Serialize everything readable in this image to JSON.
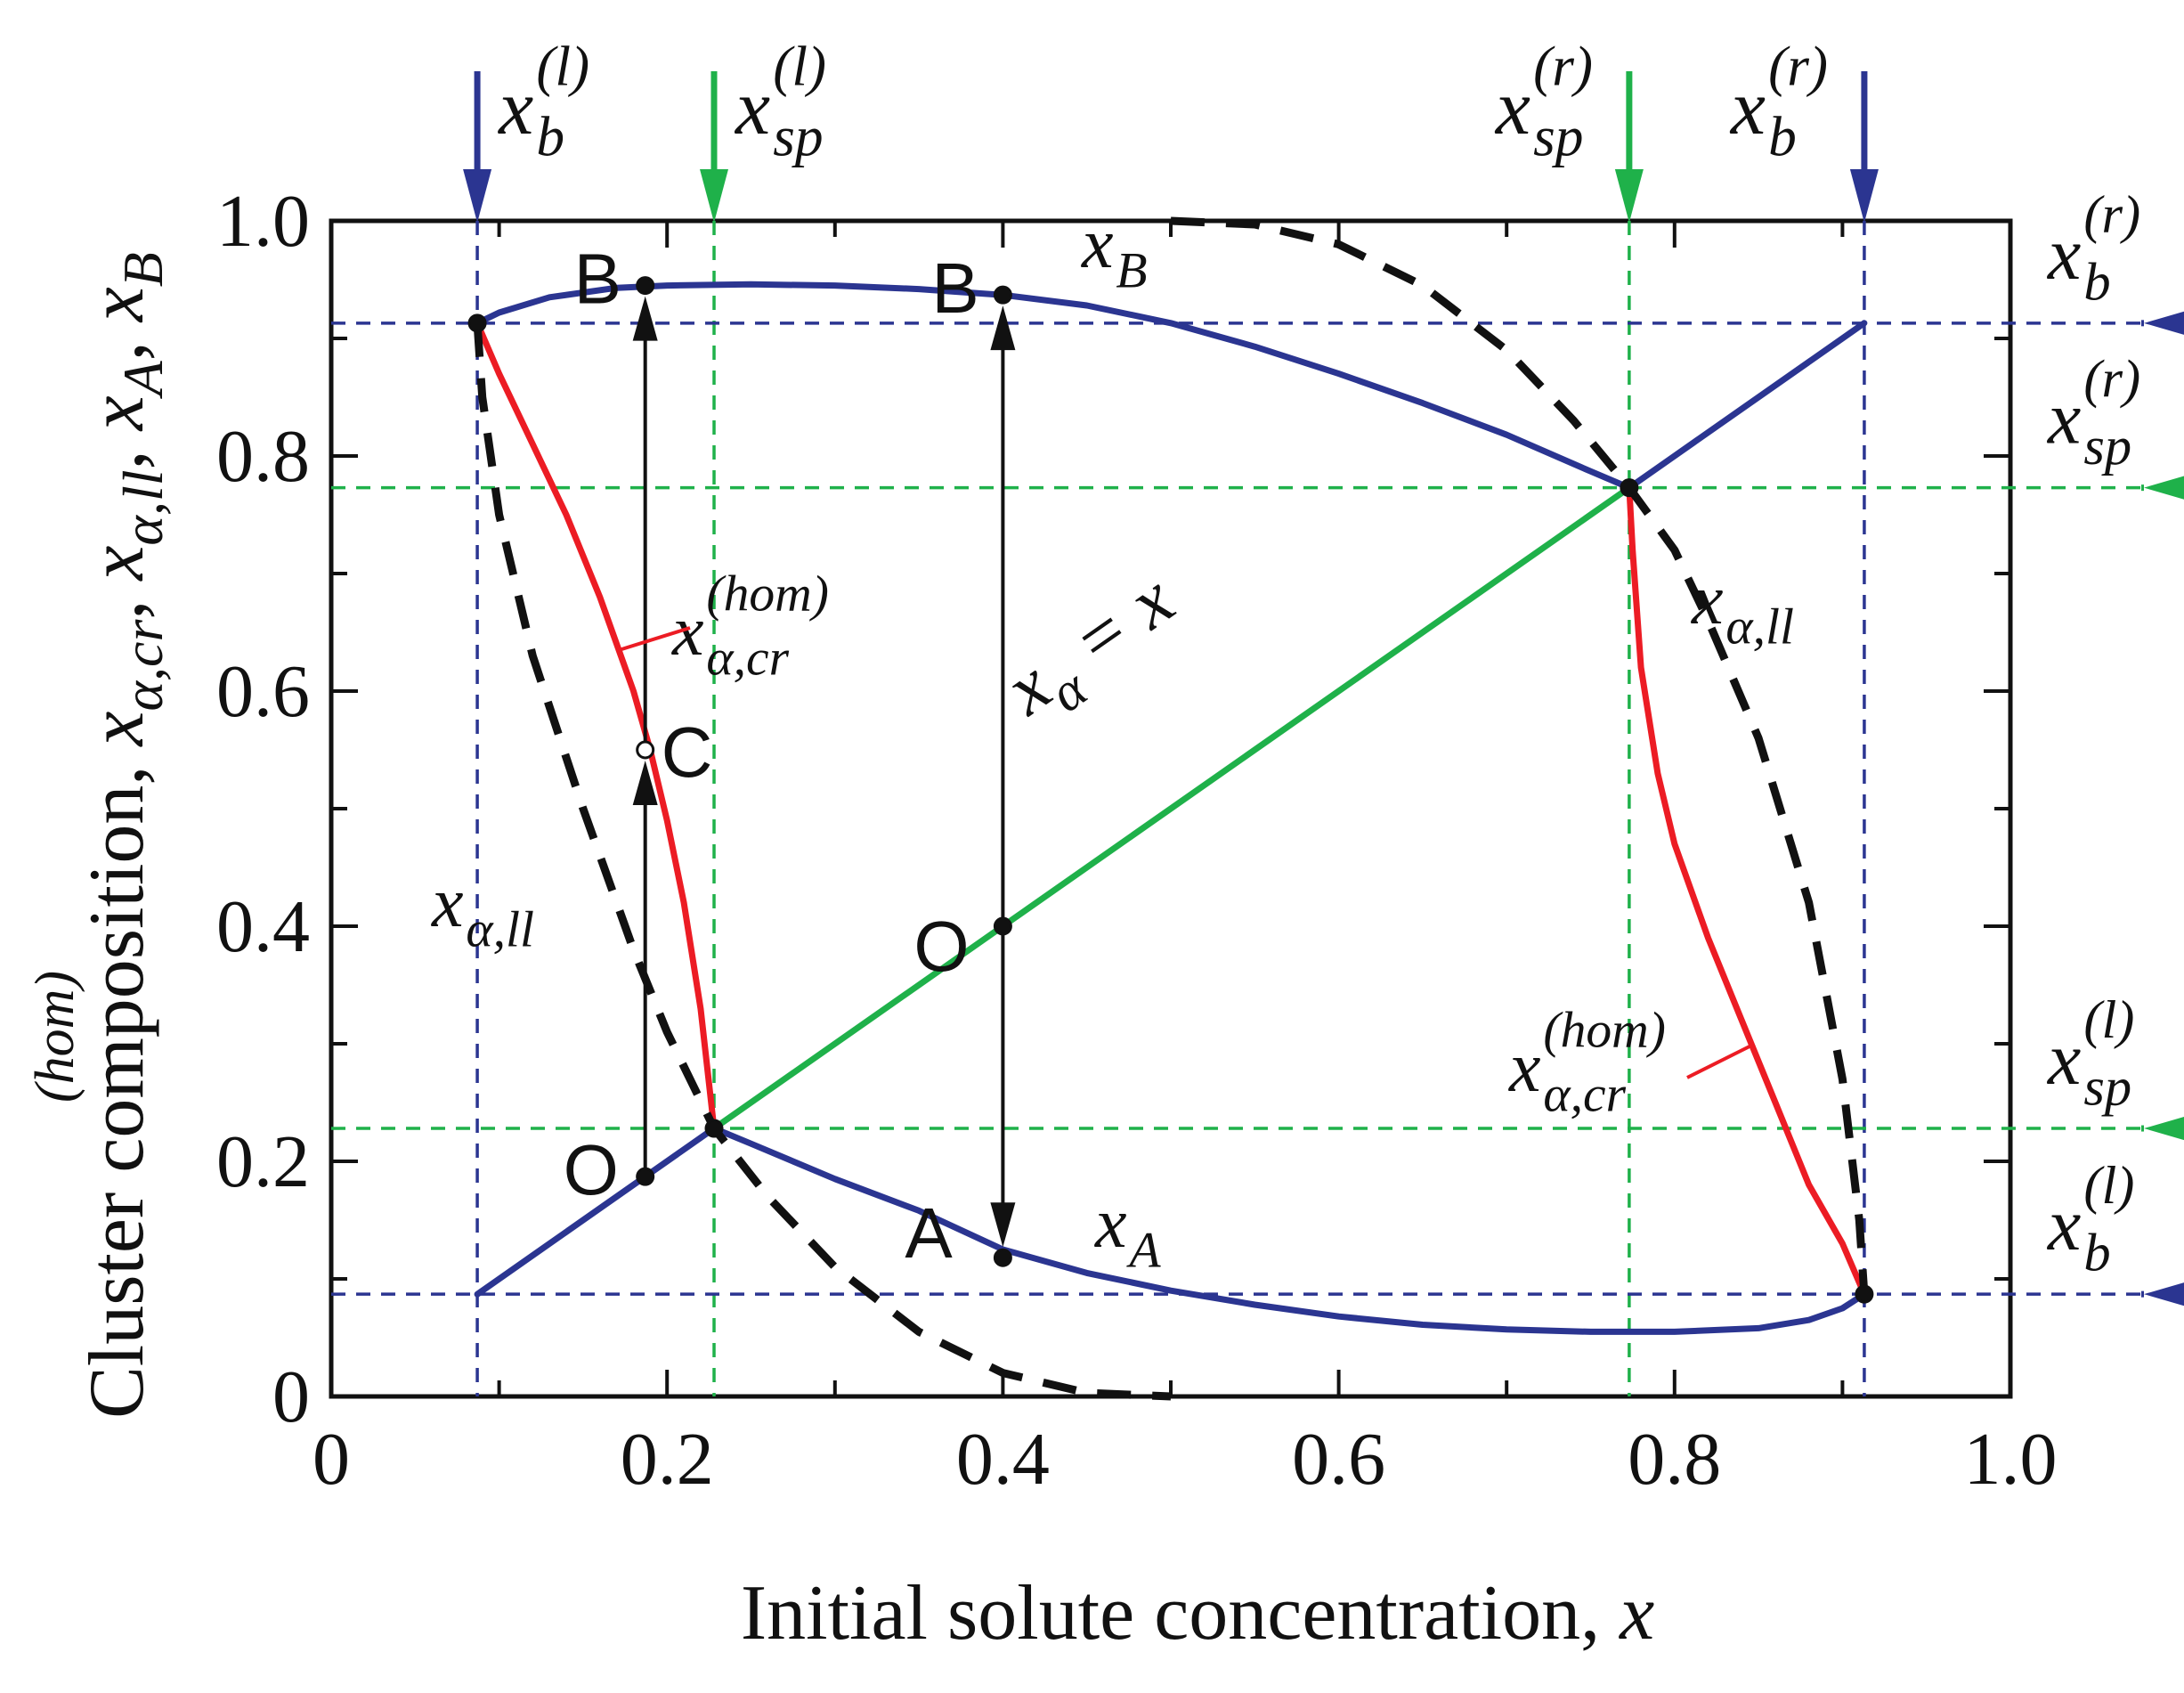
{
  "chart_data": {
    "type": "line",
    "xlabel": "Initial solute concentration, x",
    "ylabel": "Cluster composition, x",
    "ylabel_sup": "(hom)",
    "ylabel_rest": ", x",
    "xlim": [
      0,
      1.0
    ],
    "ylim": [
      0,
      1.0
    ],
    "x_ticks": [
      "0",
      "0.2",
      "0.4",
      "0.6",
      "0.8",
      "1.0"
    ],
    "y_ticks": [
      "0",
      "0.2",
      "0.4",
      "0.6",
      "0.8",
      "1.0"
    ],
    "colors": {
      "blue": "#2b3591",
      "green": "#1fb14a",
      "red": "#ec1c24",
      "black": "#111111"
    },
    "x_markers": [
      {
        "var": "x",
        "sup": "(l)",
        "sub": "b",
        "x": 0.087,
        "color": "blue"
      },
      {
        "var": "x",
        "sup": "(l)",
        "sub": "sp",
        "x": 0.228,
        "color": "green"
      },
      {
        "var": "x",
        "sup": "(r)",
        "sub": "sp",
        "x": 0.773,
        "color": "green"
      },
      {
        "var": "x",
        "sup": "(r)",
        "sub": "b",
        "x": 0.913,
        "color": "blue"
      }
    ],
    "y_markers": [
      {
        "var": "x",
        "sup": "(r)",
        "sub": "b",
        "y": 0.913,
        "color": "blue"
      },
      {
        "var": "x",
        "sup": "(r)",
        "sub": "sp",
        "y": 0.773,
        "color": "green"
      },
      {
        "var": "x",
        "sup": "(l)",
        "sub": "sp",
        "y": 0.228,
        "color": "green"
      },
      {
        "var": "x",
        "sup": "(l)",
        "sub": "b",
        "y": 0.087,
        "color": "blue"
      }
    ],
    "series": [
      {
        "key": "xB",
        "color": "blue",
        "x": [
          0.087,
          0.1,
          0.13,
          0.17,
          0.2,
          0.25,
          0.3,
          0.35,
          0.4,
          0.45,
          0.5,
          0.55,
          0.6,
          0.65,
          0.7,
          0.75,
          0.773
        ],
        "y": [
          0.913,
          0.922,
          0.935,
          0.943,
          0.945,
          0.946,
          0.945,
          0.942,
          0.937,
          0.928,
          0.913,
          0.893,
          0.87,
          0.845,
          0.818,
          0.787,
          0.773
        ]
      },
      {
        "key": "diag_left",
        "color": "blue",
        "x": [
          0.087,
          0.228
        ],
        "y": [
          0.087,
          0.228
        ]
      },
      {
        "key": "diag_right",
        "color": "blue",
        "x": [
          0.773,
          0.913
        ],
        "y": [
          0.773,
          0.913
        ]
      },
      {
        "key": "diag_mid",
        "color": "green",
        "x": [
          0.228,
          0.773
        ],
        "y": [
          0.228,
          0.773
        ]
      },
      {
        "key": "xA",
        "color": "blue",
        "x": [
          0.228,
          0.25,
          0.3,
          0.35,
          0.4,
          0.45,
          0.5,
          0.55,
          0.6,
          0.65,
          0.7,
          0.75,
          0.8,
          0.85,
          0.88,
          0.9,
          0.913
        ],
        "y": [
          0.228,
          0.215,
          0.185,
          0.158,
          0.125,
          0.105,
          0.09,
          0.078,
          0.068,
          0.061,
          0.057,
          0.055,
          0.055,
          0.058,
          0.065,
          0.075,
          0.087
        ]
      },
      {
        "key": "xcr_left",
        "color": "red",
        "x": [
          0.087,
          0.1,
          0.12,
          0.14,
          0.16,
          0.18,
          0.19,
          0.2,
          0.21,
          0.22,
          0.228
        ],
        "y": [
          0.913,
          0.87,
          0.81,
          0.75,
          0.68,
          0.6,
          0.55,
          0.49,
          0.42,
          0.33,
          0.228
        ]
      },
      {
        "key": "xcr_right",
        "color": "red",
        "x": [
          0.773,
          0.775,
          0.78,
          0.79,
          0.8,
          0.82,
          0.84,
          0.86,
          0.88,
          0.9,
          0.913
        ],
        "y": [
          0.773,
          0.72,
          0.62,
          0.53,
          0.47,
          0.39,
          0.32,
          0.25,
          0.18,
          0.13,
          0.087
        ]
      },
      {
        "key": "xll_left",
        "color": "black",
        "dashed": true,
        "x": [
          0.087,
          0.09,
          0.1,
          0.12,
          0.15,
          0.18,
          0.2,
          0.228,
          0.26,
          0.3,
          0.35,
          0.4,
          0.45,
          0.5
        ],
        "y": [
          0.913,
          0.85,
          0.75,
          0.63,
          0.5,
          0.38,
          0.31,
          0.228,
          0.17,
          0.11,
          0.055,
          0.02,
          0.003,
          0.0
        ]
      },
      {
        "key": "xll_right",
        "color": "black",
        "dashed": true,
        "x": [
          0.5,
          0.55,
          0.6,
          0.65,
          0.7,
          0.74,
          0.773,
          0.8,
          0.82,
          0.85,
          0.88,
          0.9,
          0.91,
          0.913
        ],
        "y": [
          1.0,
          0.997,
          0.98,
          0.945,
          0.89,
          0.83,
          0.773,
          0.72,
          0.66,
          0.56,
          0.42,
          0.27,
          0.15,
          0.087
        ]
      }
    ],
    "points": [
      {
        "label": "B",
        "x": 0.187,
        "y": 0.945,
        "open": false
      },
      {
        "label": "C",
        "x": 0.187,
        "y": 0.55,
        "open": true
      },
      {
        "label": "O",
        "x": 0.187,
        "y": 0.187,
        "open": false
      },
      {
        "label": "B",
        "x": 0.4,
        "y": 0.937,
        "open": false
      },
      {
        "label": "O",
        "x": 0.4,
        "y": 0.4,
        "open": false
      },
      {
        "label": "A",
        "x": 0.4,
        "y": 0.118,
        "open": false
      },
      {
        "label": "",
        "x": 0.087,
        "y": 0.913,
        "open": false
      },
      {
        "label": "",
        "x": 0.228,
        "y": 0.228,
        "open": false
      },
      {
        "label": "",
        "x": 0.773,
        "y": 0.773,
        "open": false
      },
      {
        "label": "",
        "x": 0.913,
        "y": 0.087,
        "open": false
      }
    ],
    "arrows": [
      {
        "x": 0.187,
        "y_from": 0.187,
        "y_to": 0.55
      },
      {
        "x": 0.187,
        "y_from": 0.55,
        "y_to": 0.945
      },
      {
        "x": 0.4,
        "y_from": 0.4,
        "y_to": 0.937
      },
      {
        "x": 0.4,
        "y_from": 0.4,
        "y_to": 0.118
      }
    ],
    "annotations": {
      "xB": {
        "var": "x",
        "sub": "B"
      },
      "xA": {
        "var": "x",
        "sub": "A"
      },
      "diag": "x",
      "diag_sub": "α",
      "diag_rest": " = x",
      "xll": {
        "var": "x",
        "sub": "α,ll"
      },
      "xcr": {
        "var": "x",
        "sub": "α,cr",
        "sup": "(hom)"
      }
    }
  }
}
